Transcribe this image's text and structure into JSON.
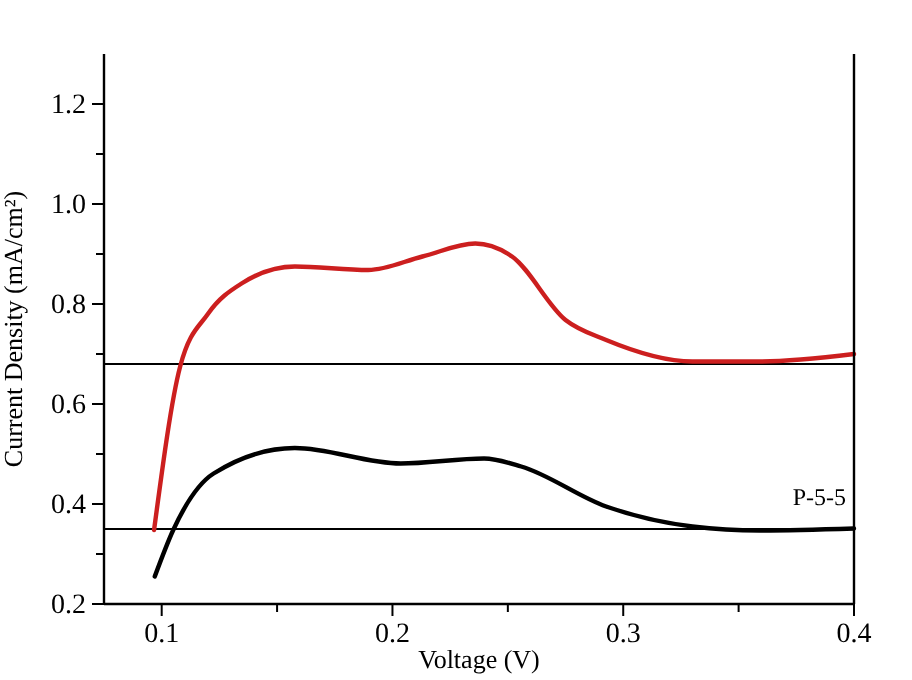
{
  "chart_data": {
    "type": "line",
    "xlabel": "Voltage (V)",
    "ylabel": "Current Density (mA/cm²)",
    "xlim": [
      0.075,
      0.4
    ],
    "ylim": [
      0.2,
      1.3
    ],
    "xticks": [
      0.1,
      {
        "value": 0.15,
        "label": null
      },
      0.2,
      {
        "value": 0.25,
        "label": null
      },
      0.3,
      {
        "value": 0.35,
        "label": null
      },
      0.4
    ],
    "yticks": [
      0.2,
      {
        "value": 0.3,
        "label": null
      },
      0.4,
      {
        "value": 0.5,
        "label": null
      },
      0.6,
      {
        "value": 0.7,
        "label": null
      },
      0.8,
      {
        "value": 0.9,
        "label": null
      },
      {
        "value": 1.0,
        "label": "1.0"
      },
      {
        "value": 1.1,
        "label": null
      },
      1.2
    ],
    "grid": false,
    "legend": false,
    "marker": "none",
    "line_style": "solid",
    "series": [
      {
        "color": "#cc1f1f",
        "x": [
          0.0967,
          0.108,
          0.12,
          0.1346,
          0.1577,
          0.1895,
          0.213,
          0.2359,
          0.2518,
          0.275,
          0.2926,
          0.33,
          0.359,
          0.4
        ],
        "values": [
          0.348,
          0.675,
          0.78,
          0.841,
          0.875,
          0.868,
          0.895,
          0.921,
          0.895,
          0.768,
          0.728,
          0.685,
          0.685,
          0.7
        ]
      },
      {
        "name": "P-5-5",
        "color": "#000000",
        "x": [
          0.097,
          0.105,
          0.1225,
          0.1577,
          0.2036,
          0.2397,
          0.2558,
          0.2926,
          0.33,
          0.359,
          0.4
        ],
        "values": [
          0.255,
          0.348,
          0.461,
          0.512,
          0.481,
          0.491,
          0.475,
          0.395,
          0.355,
          0.347,
          0.351
        ]
      }
    ],
    "ref_lines": [
      {
        "axis": "y",
        "value": 0.68,
        "color": "#000000"
      },
      {
        "axis": "y",
        "value": 0.35,
        "color": "#000000"
      }
    ]
  }
}
